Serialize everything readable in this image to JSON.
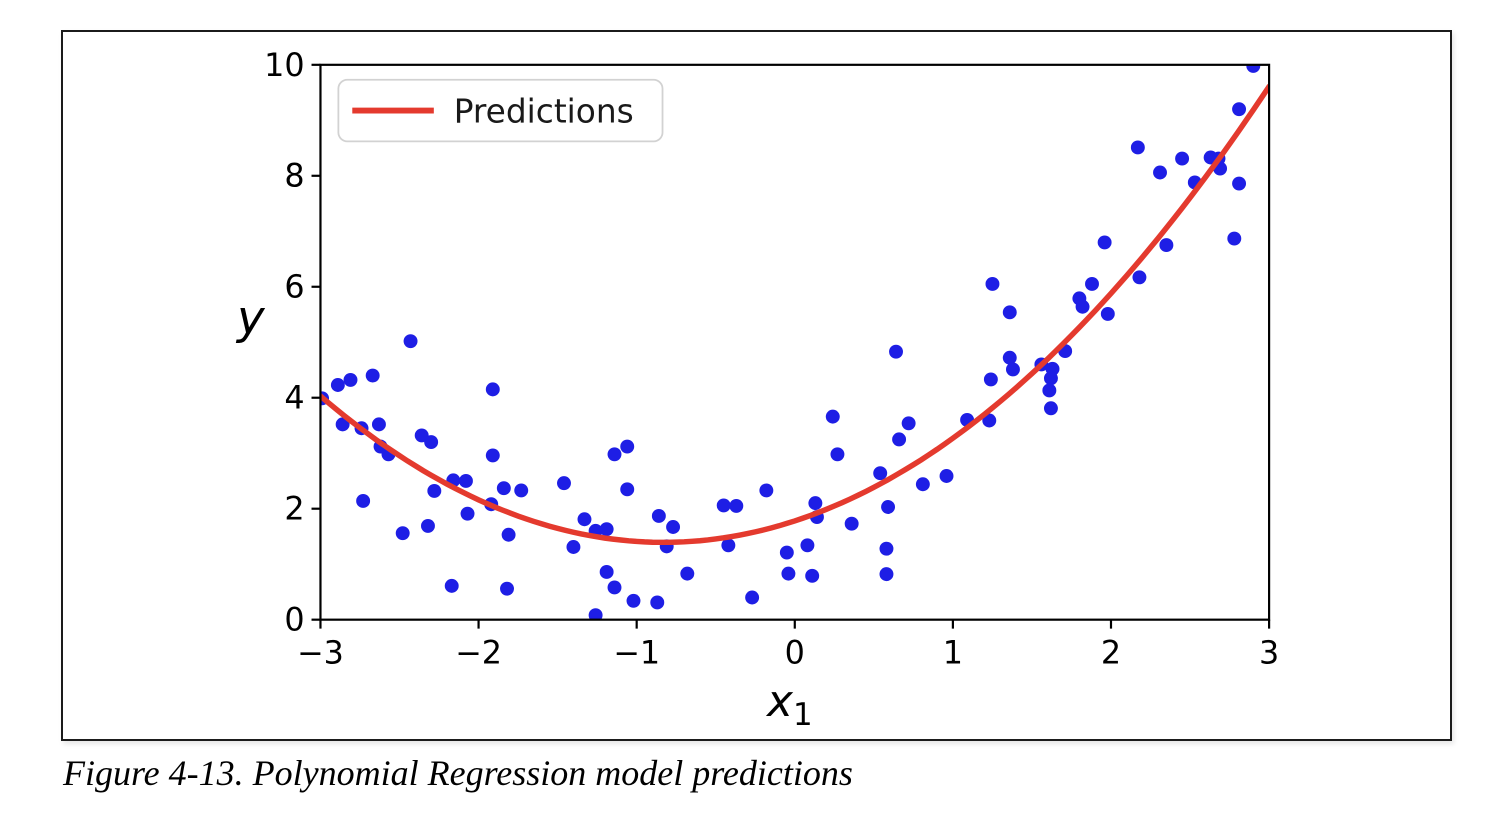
{
  "figure": {
    "caption": "Figure 4-13. Polynomial Regression model predictions"
  },
  "chart_data": {
    "type": "scatter+line",
    "title": "",
    "xlabel_base": "x",
    "xlabel_sub": "1",
    "ylabel": "y",
    "xlim": [
      -3,
      3
    ],
    "ylim": [
      0,
      10
    ],
    "xticks": [
      -3,
      -2,
      -1,
      0,
      1,
      2,
      3
    ],
    "yticks": [
      0,
      2,
      4,
      6,
      8,
      10
    ],
    "grid": false,
    "legend": {
      "position": "upper left",
      "entries": [
        {
          "label": "Predictions",
          "type": "line",
          "color": "#e43a2e"
        }
      ]
    },
    "colors": {
      "scatter": "#1e1ee5",
      "line": "#e43a2e",
      "axes": "#000000",
      "legend_border": "#d2d2d2"
    },
    "series": [
      {
        "name": "training-data",
        "type": "scatter",
        "marker": "circle",
        "color": "#1e1ee5",
        "points": [
          [
            -2.99,
            3.99
          ],
          [
            -2.89,
            4.23
          ],
          [
            -2.81,
            4.32
          ],
          [
            -2.67,
            4.4
          ],
          [
            -2.43,
            5.02
          ],
          [
            -2.86,
            3.52
          ],
          [
            -2.74,
            3.45
          ],
          [
            -2.63,
            3.52
          ],
          [
            -2.62,
            3.12
          ],
          [
            -2.57,
            2.98
          ],
          [
            -2.36,
            3.32
          ],
          [
            -2.3,
            3.2
          ],
          [
            -1.91,
            4.15
          ],
          [
            -1.91,
            2.96
          ],
          [
            -1.84,
            2.37
          ],
          [
            -1.73,
            2.33
          ],
          [
            -2.16,
            2.51
          ],
          [
            -2.08,
            2.5
          ],
          [
            -2.07,
            1.91
          ],
          [
            -2.28,
            2.32
          ],
          [
            -1.92,
            2.08
          ],
          [
            -2.48,
            1.56
          ],
          [
            -2.32,
            1.69
          ],
          [
            -2.73,
            2.14
          ],
          [
            -1.81,
            1.53
          ],
          [
            -2.17,
            0.61
          ],
          [
            -1.82,
            0.56
          ],
          [
            -1.46,
            2.46
          ],
          [
            -1.14,
            2.98
          ],
          [
            -1.06,
            3.12
          ],
          [
            -1.06,
            2.35
          ],
          [
            -1.33,
            1.81
          ],
          [
            -1.26,
            1.6
          ],
          [
            -1.19,
            1.63
          ],
          [
            -1.4,
            1.31
          ],
          [
            -0.86,
            1.87
          ],
          [
            -0.77,
            1.67
          ],
          [
            -0.81,
            1.32
          ],
          [
            -0.45,
            2.06
          ],
          [
            -0.37,
            2.05
          ],
          [
            -0.42,
            1.34
          ],
          [
            -0.18,
            2.33
          ],
          [
            -1.19,
            0.86
          ],
          [
            -1.14,
            0.58
          ],
          [
            -1.26,
            0.08
          ],
          [
            -1.02,
            0.34
          ],
          [
            -0.87,
            0.31
          ],
          [
            -0.68,
            0.83
          ],
          [
            -0.27,
            0.4
          ],
          [
            -0.05,
            1.21
          ],
          [
            -0.04,
            0.83
          ],
          [
            0.08,
            1.34
          ],
          [
            0.11,
            0.79
          ],
          [
            0.13,
            2.1
          ],
          [
            0.14,
            1.85
          ],
          [
            0.64,
            4.83
          ],
          [
            0.24,
            3.66
          ],
          [
            0.27,
            2.98
          ],
          [
            0.54,
            2.64
          ],
          [
            0.72,
            3.54
          ],
          [
            0.66,
            3.25
          ],
          [
            0.81,
            2.44
          ],
          [
            0.96,
            2.59
          ],
          [
            0.59,
            2.03
          ],
          [
            0.36,
            1.73
          ],
          [
            0.58,
            1.28
          ],
          [
            0.58,
            0.82
          ],
          [
            1.09,
            3.6
          ],
          [
            1.23,
            3.59
          ],
          [
            1.24,
            4.33
          ],
          [
            1.36,
            4.72
          ],
          [
            1.38,
            4.51
          ],
          [
            1.56,
            4.6
          ],
          [
            1.63,
            4.52
          ],
          [
            1.62,
            4.35
          ],
          [
            1.61,
            4.13
          ],
          [
            1.62,
            3.81
          ],
          [
            1.71,
            4.84
          ],
          [
            2.9,
            9.98
          ],
          [
            2.81,
            9.2
          ],
          [
            2.17,
            8.51
          ],
          [
            2.45,
            8.31
          ],
          [
            2.63,
            8.33
          ],
          [
            2.68,
            8.31
          ],
          [
            2.69,
            8.13
          ],
          [
            2.31,
            8.06
          ],
          [
            2.53,
            7.88
          ],
          [
            2.81,
            7.86
          ],
          [
            1.96,
            6.8
          ],
          [
            2.35,
            6.75
          ],
          [
            2.78,
            6.87
          ],
          [
            1.25,
            6.05
          ],
          [
            1.88,
            6.05
          ],
          [
            1.36,
            5.54
          ],
          [
            1.8,
            5.79
          ],
          [
            1.82,
            5.64
          ],
          [
            1.98,
            5.51
          ],
          [
            2.18,
            6.17
          ]
        ]
      },
      {
        "name": "Predictions",
        "type": "line",
        "color": "#e43a2e",
        "model": "quadratic",
        "coefficients": {
          "a": 0.56,
          "b": 0.93,
          "c": 1.78
        },
        "x_range": [
          -3,
          3
        ]
      }
    ]
  }
}
